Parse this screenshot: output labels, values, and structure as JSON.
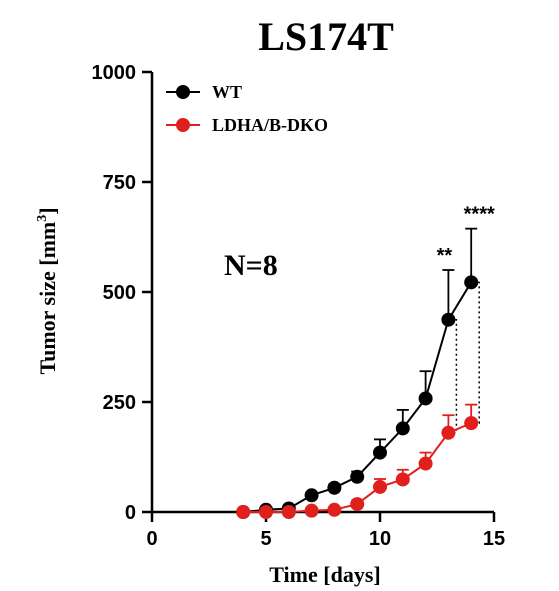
{
  "chart_data": {
    "type": "line",
    "title": "LS174T",
    "xlabel": "Time [days]",
    "ylabel_main": "Tumor size [mm",
    "ylabel_sup": "3",
    "ylabel_end": "]",
    "xlim": [
      0,
      15
    ],
    "ylim": [
      0,
      1000
    ],
    "xticks": [
      0,
      5,
      10,
      15
    ],
    "yticks": [
      0,
      250,
      500,
      750,
      1000
    ],
    "x": [
      4,
      5,
      6,
      7,
      8,
      9,
      10,
      11,
      12,
      13,
      14
    ],
    "legend_position": "top-left",
    "grid": false,
    "annotation_n": "N=8",
    "series": [
      {
        "name": "WT",
        "color": "#000000",
        "values": [
          0,
          5,
          8,
          38,
          55,
          80,
          135,
          190,
          258,
          437,
          522
        ],
        "errors": [
          0,
          3,
          4,
          6,
          8,
          12,
          30,
          42,
          62,
          113,
          122
        ]
      },
      {
        "name": "LDHA/B-DKO",
        "color": "#e0201c",
        "values": [
          0,
          0,
          0,
          3,
          5,
          18,
          57,
          74,
          110,
          180,
          202
        ],
        "errors": [
          0,
          1,
          1,
          2,
          2,
          8,
          18,
          22,
          25,
          40,
          42
        ]
      }
    ],
    "significance": [
      {
        "x": 13,
        "label": "**"
      },
      {
        "x": 14,
        "label": "****"
      }
    ]
  }
}
